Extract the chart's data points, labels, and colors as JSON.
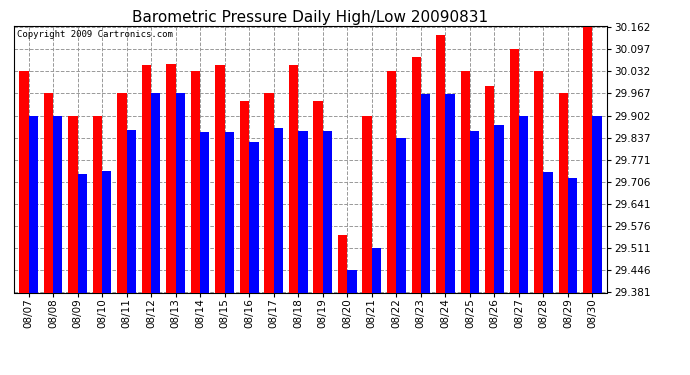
{
  "title": "Barometric Pressure Daily High/Low 20090831",
  "copyright": "Copyright 2009 Cartronics.com",
  "dates": [
    "08/07",
    "08/08",
    "08/09",
    "08/10",
    "08/11",
    "08/12",
    "08/13",
    "08/14",
    "08/15",
    "08/16",
    "08/17",
    "08/18",
    "08/19",
    "08/20",
    "08/21",
    "08/22",
    "08/23",
    "08/24",
    "08/25",
    "08/26",
    "08/27",
    "08/28",
    "08/29",
    "08/30"
  ],
  "highs": [
    30.032,
    29.967,
    29.902,
    29.902,
    29.967,
    30.05,
    30.055,
    30.032,
    30.05,
    29.945,
    29.967,
    30.05,
    29.945,
    29.55,
    29.902,
    30.032,
    30.075,
    30.14,
    30.032,
    29.99,
    30.097,
    30.032,
    29.967,
    30.162
  ],
  "lows": [
    29.902,
    29.902,
    29.73,
    29.74,
    29.86,
    29.967,
    29.967,
    29.855,
    29.855,
    29.825,
    29.865,
    29.858,
    29.858,
    29.446,
    29.511,
    29.837,
    29.965,
    29.965,
    29.858,
    29.875,
    29.902,
    29.735,
    29.718,
    29.902
  ],
  "high_color": "#ff0000",
  "low_color": "#0000ff",
  "bg_color": "#ffffff",
  "grid_color": "#999999",
  "ymin": 29.381,
  "ymax": 30.162,
  "yticks": [
    29.381,
    29.446,
    29.511,
    29.576,
    29.641,
    29.706,
    29.771,
    29.837,
    29.902,
    29.967,
    30.032,
    30.097,
    30.162
  ],
  "bar_width": 0.38,
  "title_fontsize": 11,
  "tick_fontsize": 7.5,
  "copyright_fontsize": 6.5
}
